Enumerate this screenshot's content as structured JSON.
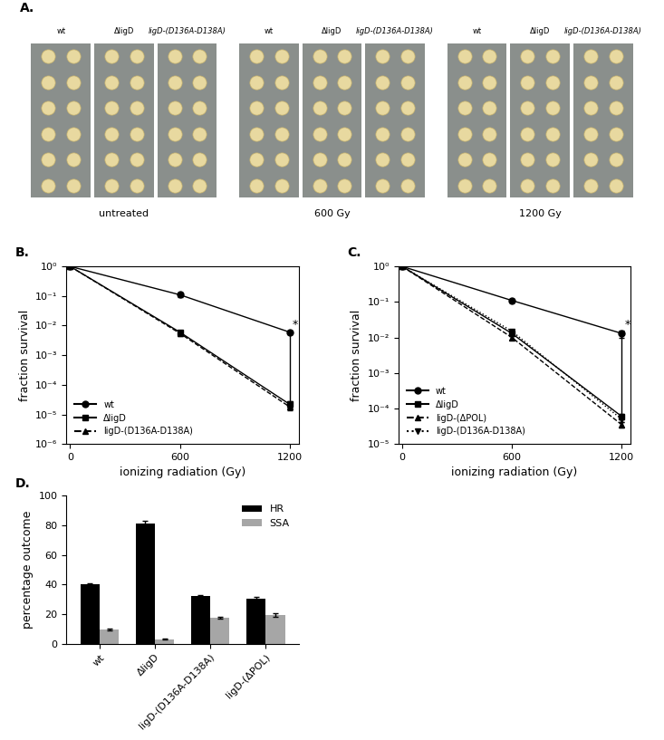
{
  "panel_a": {
    "panel_label": "A.",
    "strains": [
      "wt",
      "ΔligD",
      "ligD-(D136A-D138A)"
    ],
    "conditions": [
      "untreated",
      "600 Gy",
      "1200 Gy"
    ]
  },
  "chart_data": [
    {
      "type": "line",
      "panel_label": "B.",
      "x_label": "ionizing radiation (Gy)",
      "y_label": "fraction survival",
      "log": "y",
      "legend": "lower left",
      "xlim": [
        -20,
        1250
      ],
      "xticks": [
        0,
        600,
        1200
      ],
      "ylim": [
        1e-06,
        1
      ],
      "yticks": [
        {
          "value": 1e-06,
          "label": "10⁻⁶"
        },
        {
          "value": 1e-05,
          "label": "10⁻⁵"
        },
        {
          "value": 0.0001,
          "label": "10⁻⁴"
        },
        {
          "value": 0.001,
          "label": "10⁻³"
        },
        {
          "value": 0.01,
          "label": "10⁻²"
        },
        {
          "value": 0.1,
          "label": "10⁻¹"
        },
        {
          "value": 1,
          "label": "10⁰"
        }
      ],
      "x": [
        0,
        600,
        1200
      ],
      "series": [
        {
          "name": "wt",
          "color": "#000000",
          "marker": "circle",
          "line_style": "solid",
          "values": [
            1,
            0.11,
            0.006
          ],
          "errors": [
            0.05,
            0.02,
            0.0008
          ]
        },
        {
          "name": "ΔligD",
          "color": "#000000",
          "marker": "square",
          "line_style": "solid",
          "values": [
            1,
            0.006,
            2.2e-05
          ],
          "errors": [
            0.05,
            0.001,
            5e-06
          ]
        },
        {
          "name": "ligD-(D136A-D138A)",
          "color": "#000000",
          "marker": "triangle_up",
          "line_style": "dashed",
          "values": [
            1,
            0.0055,
            1.8e-05
          ],
          "errors": [
            0.05,
            0.001,
            4e-06
          ]
        }
      ],
      "significance": {
        "text": "*",
        "x": 1200,
        "from": 1.5e-05,
        "to": 0.006
      }
    },
    {
      "type": "line",
      "panel_label": "C.",
      "x_label": "ionizing radiation (Gy)",
      "y_label": "fraction survival",
      "log": "y",
      "legend": "lower left",
      "xlim": [
        -20,
        1250
      ],
      "xticks": [
        0,
        600,
        1200
      ],
      "ylim": [
        1e-05,
        1
      ],
      "yticks": [
        {
          "value": 1e-05,
          "label": "10⁻⁵"
        },
        {
          "value": 0.0001,
          "label": "10⁻⁴"
        },
        {
          "value": 0.001,
          "label": "10⁻³"
        },
        {
          "value": 0.01,
          "label": "10⁻²"
        },
        {
          "value": 0.1,
          "label": "10⁻¹"
        },
        {
          "value": 1,
          "label": "10⁰"
        }
      ],
      "x": [
        0,
        600,
        1200
      ],
      "series": [
        {
          "name": "wt",
          "color": "#000000",
          "marker": "circle",
          "line_style": "solid",
          "values": [
            1,
            0.11,
            0.013
          ],
          "errors": [
            0.05,
            0.015,
            0.003
          ]
        },
        {
          "name": "ΔligD",
          "color": "#000000",
          "marker": "square",
          "line_style": "solid",
          "values": [
            1,
            0.013,
            6e-05
          ],
          "errors": [
            0.05,
            0.002,
            1e-05
          ]
        },
        {
          "name": "ligD-(ΔPOL)",
          "color": "#000000",
          "marker": "triangle_up",
          "line_style": "dashed",
          "values": [
            1,
            0.01,
            3.5e-05
          ],
          "errors": [
            0.05,
            0.0015,
            6e-06
          ]
        },
        {
          "name": "ligD-(D136A-D138A)",
          "color": "#000000",
          "marker": "triangle_down",
          "line_style": "dotted",
          "values": [
            1,
            0.015,
            5e-05
          ],
          "errors": [
            0.05,
            0.002,
            8e-06
          ]
        }
      ],
      "significance": {
        "text": "*",
        "x": 1200,
        "from": 3.5e-05,
        "to": 0.013
      }
    },
    {
      "type": "bar",
      "panel_label": "D.",
      "y_label": "percentage outcome",
      "legend": "upper right",
      "categories": [
        "wt",
        "ΔligD",
        "ligD-(D136A-D138A)",
        "ligD-(ΔPOL)"
      ],
      "ylim": [
        0,
        100
      ],
      "yticks": [
        0,
        20,
        40,
        60,
        80,
        100
      ],
      "series": [
        {
          "name": "HR",
          "color": "#000000",
          "values": [
            40,
            81,
            32.5,
            30.5
          ],
          "errors": [
            0.8,
            2,
            0.5,
            1
          ]
        },
        {
          "name": "SSA",
          "color": "#a6a6a6",
          "values": [
            9.5,
            3,
            17.5,
            19.5
          ],
          "errors": [
            0.5,
            0.3,
            0.5,
            1
          ]
        }
      ]
    }
  ]
}
